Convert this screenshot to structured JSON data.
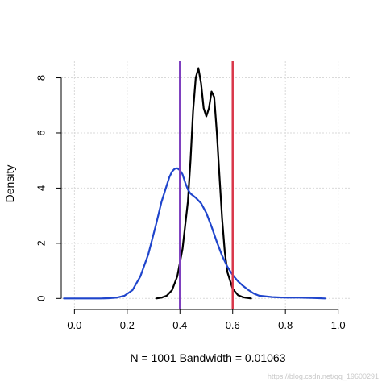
{
  "chart_data": {
    "type": "line",
    "title": "",
    "xlabel": "N = 1001   Bandwidth = 0.01063",
    "ylabel": "Density",
    "xlim": [
      -0.05,
      1.05
    ],
    "ylim": [
      -0.4,
      8.6
    ],
    "x_ticks": [
      0.0,
      0.2,
      0.4,
      0.6,
      0.8,
      1.0
    ],
    "x_tick_labels": [
      "0.0",
      "0.2",
      "0.4",
      "0.6",
      "0.8",
      "1.0"
    ],
    "y_ticks": [
      0,
      2,
      4,
      6,
      8
    ],
    "y_tick_labels": [
      "0",
      "2",
      "4",
      "6",
      "8"
    ],
    "grid": true,
    "series": [
      {
        "color": "#000000",
        "x": [
          0.31,
          0.33,
          0.35,
          0.37,
          0.39,
          0.41,
          0.43,
          0.44,
          0.45,
          0.46,
          0.47,
          0.48,
          0.49,
          0.5,
          0.51,
          0.52,
          0.53,
          0.54,
          0.55,
          0.56,
          0.57,
          0.58,
          0.6,
          0.62,
          0.64,
          0.67
        ],
        "y": [
          0.0,
          0.03,
          0.1,
          0.3,
          0.8,
          1.8,
          3.5,
          5.0,
          6.8,
          8.0,
          8.35,
          7.8,
          6.9,
          6.6,
          6.9,
          7.5,
          7.3,
          6.0,
          4.4,
          2.9,
          1.7,
          0.95,
          0.35,
          0.12,
          0.04,
          0.0
        ]
      },
      {
        "color": "#1f45cc",
        "x": [
          -0.04,
          0.0,
          0.05,
          0.1,
          0.13,
          0.16,
          0.19,
          0.22,
          0.25,
          0.28,
          0.31,
          0.33,
          0.35,
          0.36,
          0.37,
          0.38,
          0.39,
          0.4,
          0.41,
          0.42,
          0.43,
          0.44,
          0.46,
          0.48,
          0.5,
          0.52,
          0.54,
          0.56,
          0.58,
          0.6,
          0.62,
          0.64,
          0.66,
          0.68,
          0.7,
          0.75,
          0.8,
          0.85,
          0.9,
          0.95
        ],
        "y": [
          0.0,
          0.0,
          0.0,
          0.0,
          0.01,
          0.03,
          0.1,
          0.3,
          0.8,
          1.6,
          2.7,
          3.5,
          4.1,
          4.4,
          4.6,
          4.7,
          4.72,
          4.65,
          4.5,
          4.2,
          3.95,
          3.8,
          3.65,
          3.45,
          3.1,
          2.6,
          2.05,
          1.55,
          1.15,
          0.85,
          0.62,
          0.45,
          0.3,
          0.18,
          0.1,
          0.05,
          0.03,
          0.03,
          0.02,
          0.0
        ]
      }
    ],
    "vlines": [
      {
        "x": 0.4,
        "color": "#7e3fbf"
      },
      {
        "x": 0.6,
        "color": "#d9374a"
      }
    ]
  },
  "watermark": "https://blog.csdn.net/qq_19600291"
}
